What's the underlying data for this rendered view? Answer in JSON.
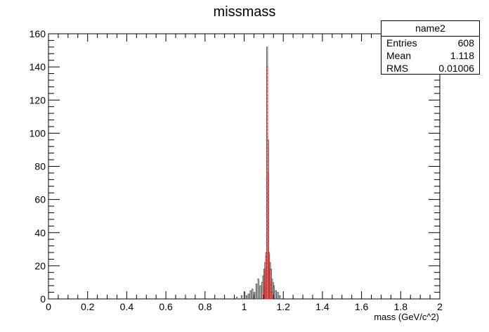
{
  "chart_data": {
    "type": "bar",
    "title": "missmass",
    "xlabel": "mass (GeV/c^2)",
    "ylabel": "",
    "xlim": [
      0,
      2
    ],
    "ylim": [
      0,
      160
    ],
    "xticks": [
      "0",
      "0.2",
      "0.4",
      "0.6",
      "0.8",
      "1",
      "1.2",
      "1.4",
      "1.6",
      "1.8",
      "2"
    ],
    "yticks": [
      "0",
      "20",
      "40",
      "60",
      "80",
      "100",
      "120",
      "140",
      "160"
    ],
    "grid": false,
    "legend": "top-right",
    "bin_width": 0.005,
    "series": [
      {
        "style": "outline",
        "color": "#555555",
        "bins": [
          [
            0.96,
            0.005,
            1
          ],
          [
            0.985,
            0.005,
            2
          ],
          [
            1.0,
            0.005,
            4
          ],
          [
            1.01,
            0.005,
            2
          ],
          [
            1.02,
            0.005,
            3
          ],
          [
            1.03,
            0.005,
            5
          ],
          [
            1.04,
            0.005,
            6
          ],
          [
            1.05,
            0.005,
            4
          ],
          [
            1.06,
            0.005,
            9
          ],
          [
            1.07,
            0.005,
            12
          ],
          [
            1.08,
            0.005,
            8
          ],
          [
            1.09,
            0.005,
            10
          ],
          [
            1.095,
            0.005,
            14
          ],
          [
            1.1,
            0.005,
            18
          ],
          [
            1.105,
            0.005,
            22
          ],
          [
            1.11,
            0.005,
            28
          ],
          [
            1.115,
            0.005,
            152
          ],
          [
            1.12,
            0.005,
            96
          ],
          [
            1.125,
            0.005,
            28
          ],
          [
            1.13,
            0.005,
            22
          ],
          [
            1.135,
            0.005,
            18
          ],
          [
            1.14,
            0.005,
            12
          ],
          [
            1.145,
            0.005,
            10
          ],
          [
            1.15,
            0.005,
            8
          ],
          [
            1.16,
            0.005,
            5
          ],
          [
            1.17,
            0.005,
            4
          ],
          [
            1.18,
            0.005,
            2
          ]
        ]
      },
      {
        "style": "hatched",
        "color": "#d03030",
        "bins": [
          [
            1.095,
            0.005,
            4
          ],
          [
            1.1,
            0.005,
            10
          ],
          [
            1.105,
            0.005,
            18
          ],
          [
            1.11,
            0.005,
            26
          ],
          [
            1.115,
            0.005,
            140
          ],
          [
            1.12,
            0.005,
            76
          ],
          [
            1.125,
            0.005,
            26
          ],
          [
            1.13,
            0.005,
            18
          ],
          [
            1.135,
            0.005,
            10
          ],
          [
            1.14,
            0.005,
            4
          ]
        ]
      }
    ]
  },
  "stats": {
    "name": "name2",
    "entries_label": "Entries",
    "entries": "608",
    "mean_label": "Mean",
    "mean": "1.118",
    "rms_label": "RMS",
    "rms": "0.01006"
  }
}
